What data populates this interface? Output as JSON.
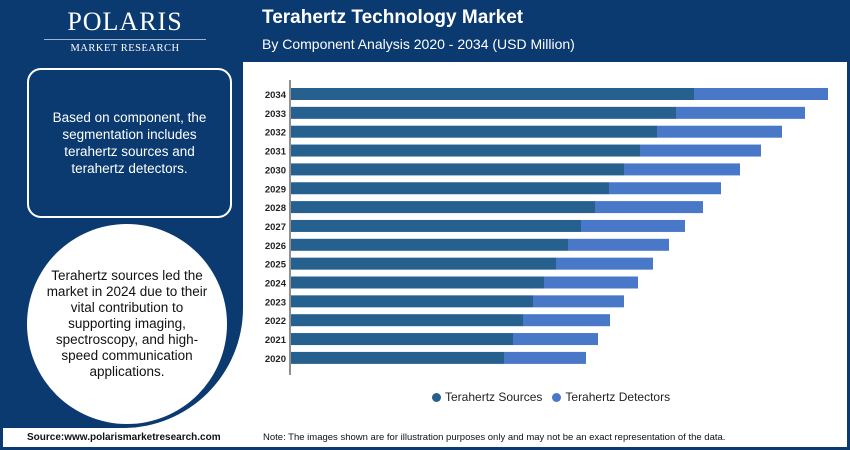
{
  "logo": {
    "name": "POLARIS",
    "tagline": "MARKET RESEARCH"
  },
  "header": {
    "title": "Terahertz Technology Market",
    "subtitle": "By Component Analysis 2020 - 2034 (USD Million)"
  },
  "sidebar": {
    "box_text": "Based on component, the segmentation includes terahertz sources and terahertz detectors.",
    "circle_text": "Terahertz sources led the market in 2024 due to their vital contribution to supporting imaging, spectroscopy, and high-speed communication applications."
  },
  "footer": {
    "source": "Source:www.polarismarketresearch.com",
    "note": "Note: The images shown are for illustration purposes only and may not be an exact representation of the data."
  },
  "colors": {
    "background": "#0b3a70",
    "sources": "#25608f",
    "detectors": "#4a78c9"
  },
  "chart_data": {
    "type": "bar",
    "orientation": "horizontal",
    "stacked": true,
    "title": "Terahertz Technology Market",
    "subtitle": "By Component Analysis 2020 - 2034 (USD Million)",
    "categories": [
      "2034",
      "2033",
      "2032",
      "2031",
      "2030",
      "2029",
      "2028",
      "2027",
      "2026",
      "2025",
      "2024",
      "2023",
      "2022",
      "2021",
      "2020"
    ],
    "series": [
      {
        "name": "Terahertz Sources",
        "color": "#25608f",
        "values": [
          403,
          385,
          366,
          349,
          333,
          318,
          304,
          290,
          277,
          265,
          253,
          242,
          232,
          222,
          213
        ]
      },
      {
        "name": "Terahertz Detectors",
        "color": "#4a78c9",
        "values": [
          134,
          129,
          125,
          121,
          116,
          112,
          108,
          104,
          101,
          97,
          94,
          91,
          87,
          85,
          82
        ]
      }
    ],
    "value_axis_shown": false,
    "grid": false,
    "legend": "bottom"
  }
}
